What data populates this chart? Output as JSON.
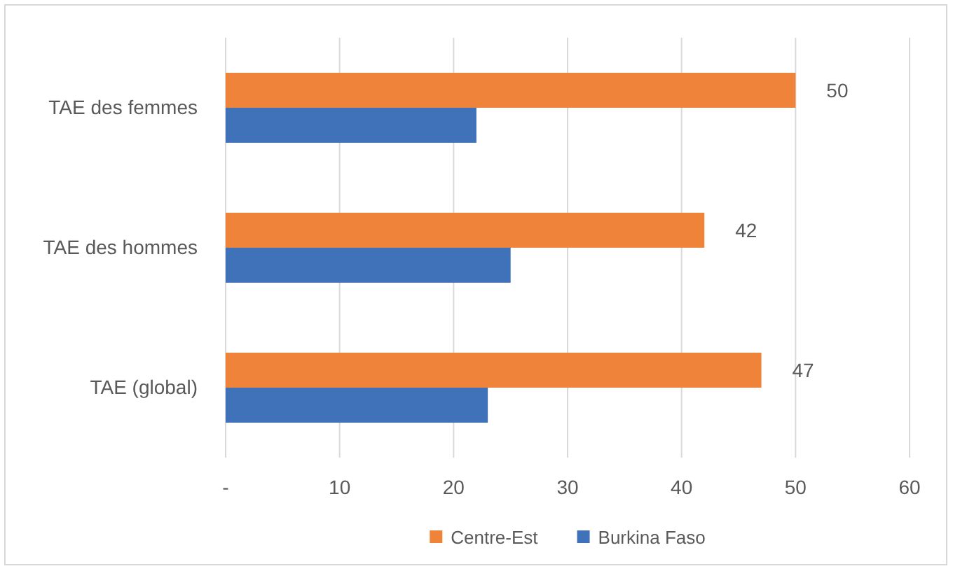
{
  "chart_data": {
    "type": "bar",
    "orientation": "horizontal",
    "categories": [
      "TAE des femmes",
      "TAE des hommes",
      "TAE (global)"
    ],
    "series": [
      {
        "name": "Centre-Est",
        "color": "#f0833a",
        "values": [
          50,
          42,
          47
        ],
        "data_labels": true
      },
      {
        "name": "Burkina Faso",
        "color": "#3f72b8",
        "values": [
          22,
          25,
          23
        ]
      }
    ],
    "xlim": [
      0,
      60
    ],
    "xticks": [
      {
        "value": 0,
        "label": "-"
      },
      10,
      20,
      30,
      40,
      50,
      60
    ],
    "grid": "x",
    "legend": "bottom"
  }
}
